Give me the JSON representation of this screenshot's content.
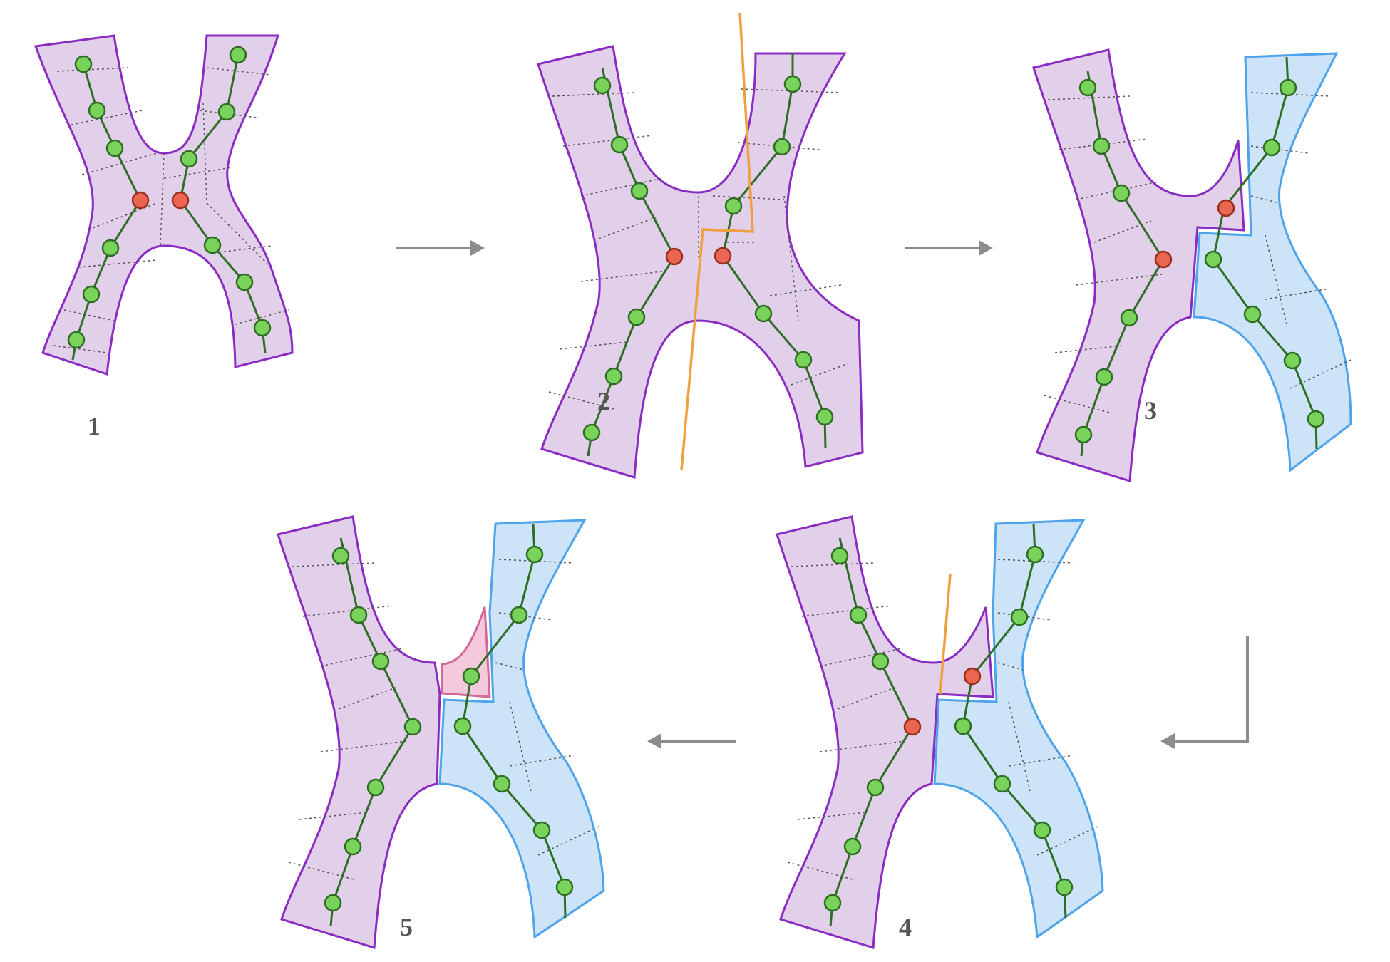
{
  "panels": [
    {
      "number": "1",
      "stage": "initial"
    },
    {
      "number": "2",
      "stage": "cut-line"
    },
    {
      "number": "3",
      "stage": "split"
    },
    {
      "number": "4",
      "stage": "second-cut"
    },
    {
      "number": "5",
      "stage": "fragment"
    }
  ],
  "colors": {
    "purple_fill": "#e2cfea",
    "purple_stroke": "#8a2bc2",
    "blue_fill": "#cce3f8",
    "blue_stroke": "#4ea3ea",
    "pink_fill": "#f4c9dc",
    "pink_stroke": "#d4679a",
    "cut_line": "#f0a040",
    "green_node": "#79d25a",
    "node_edge": "#2e6e24",
    "red_node": "#ea6650",
    "red_edge": "#9a2d1e",
    "arrow": "#8c8c8c"
  }
}
